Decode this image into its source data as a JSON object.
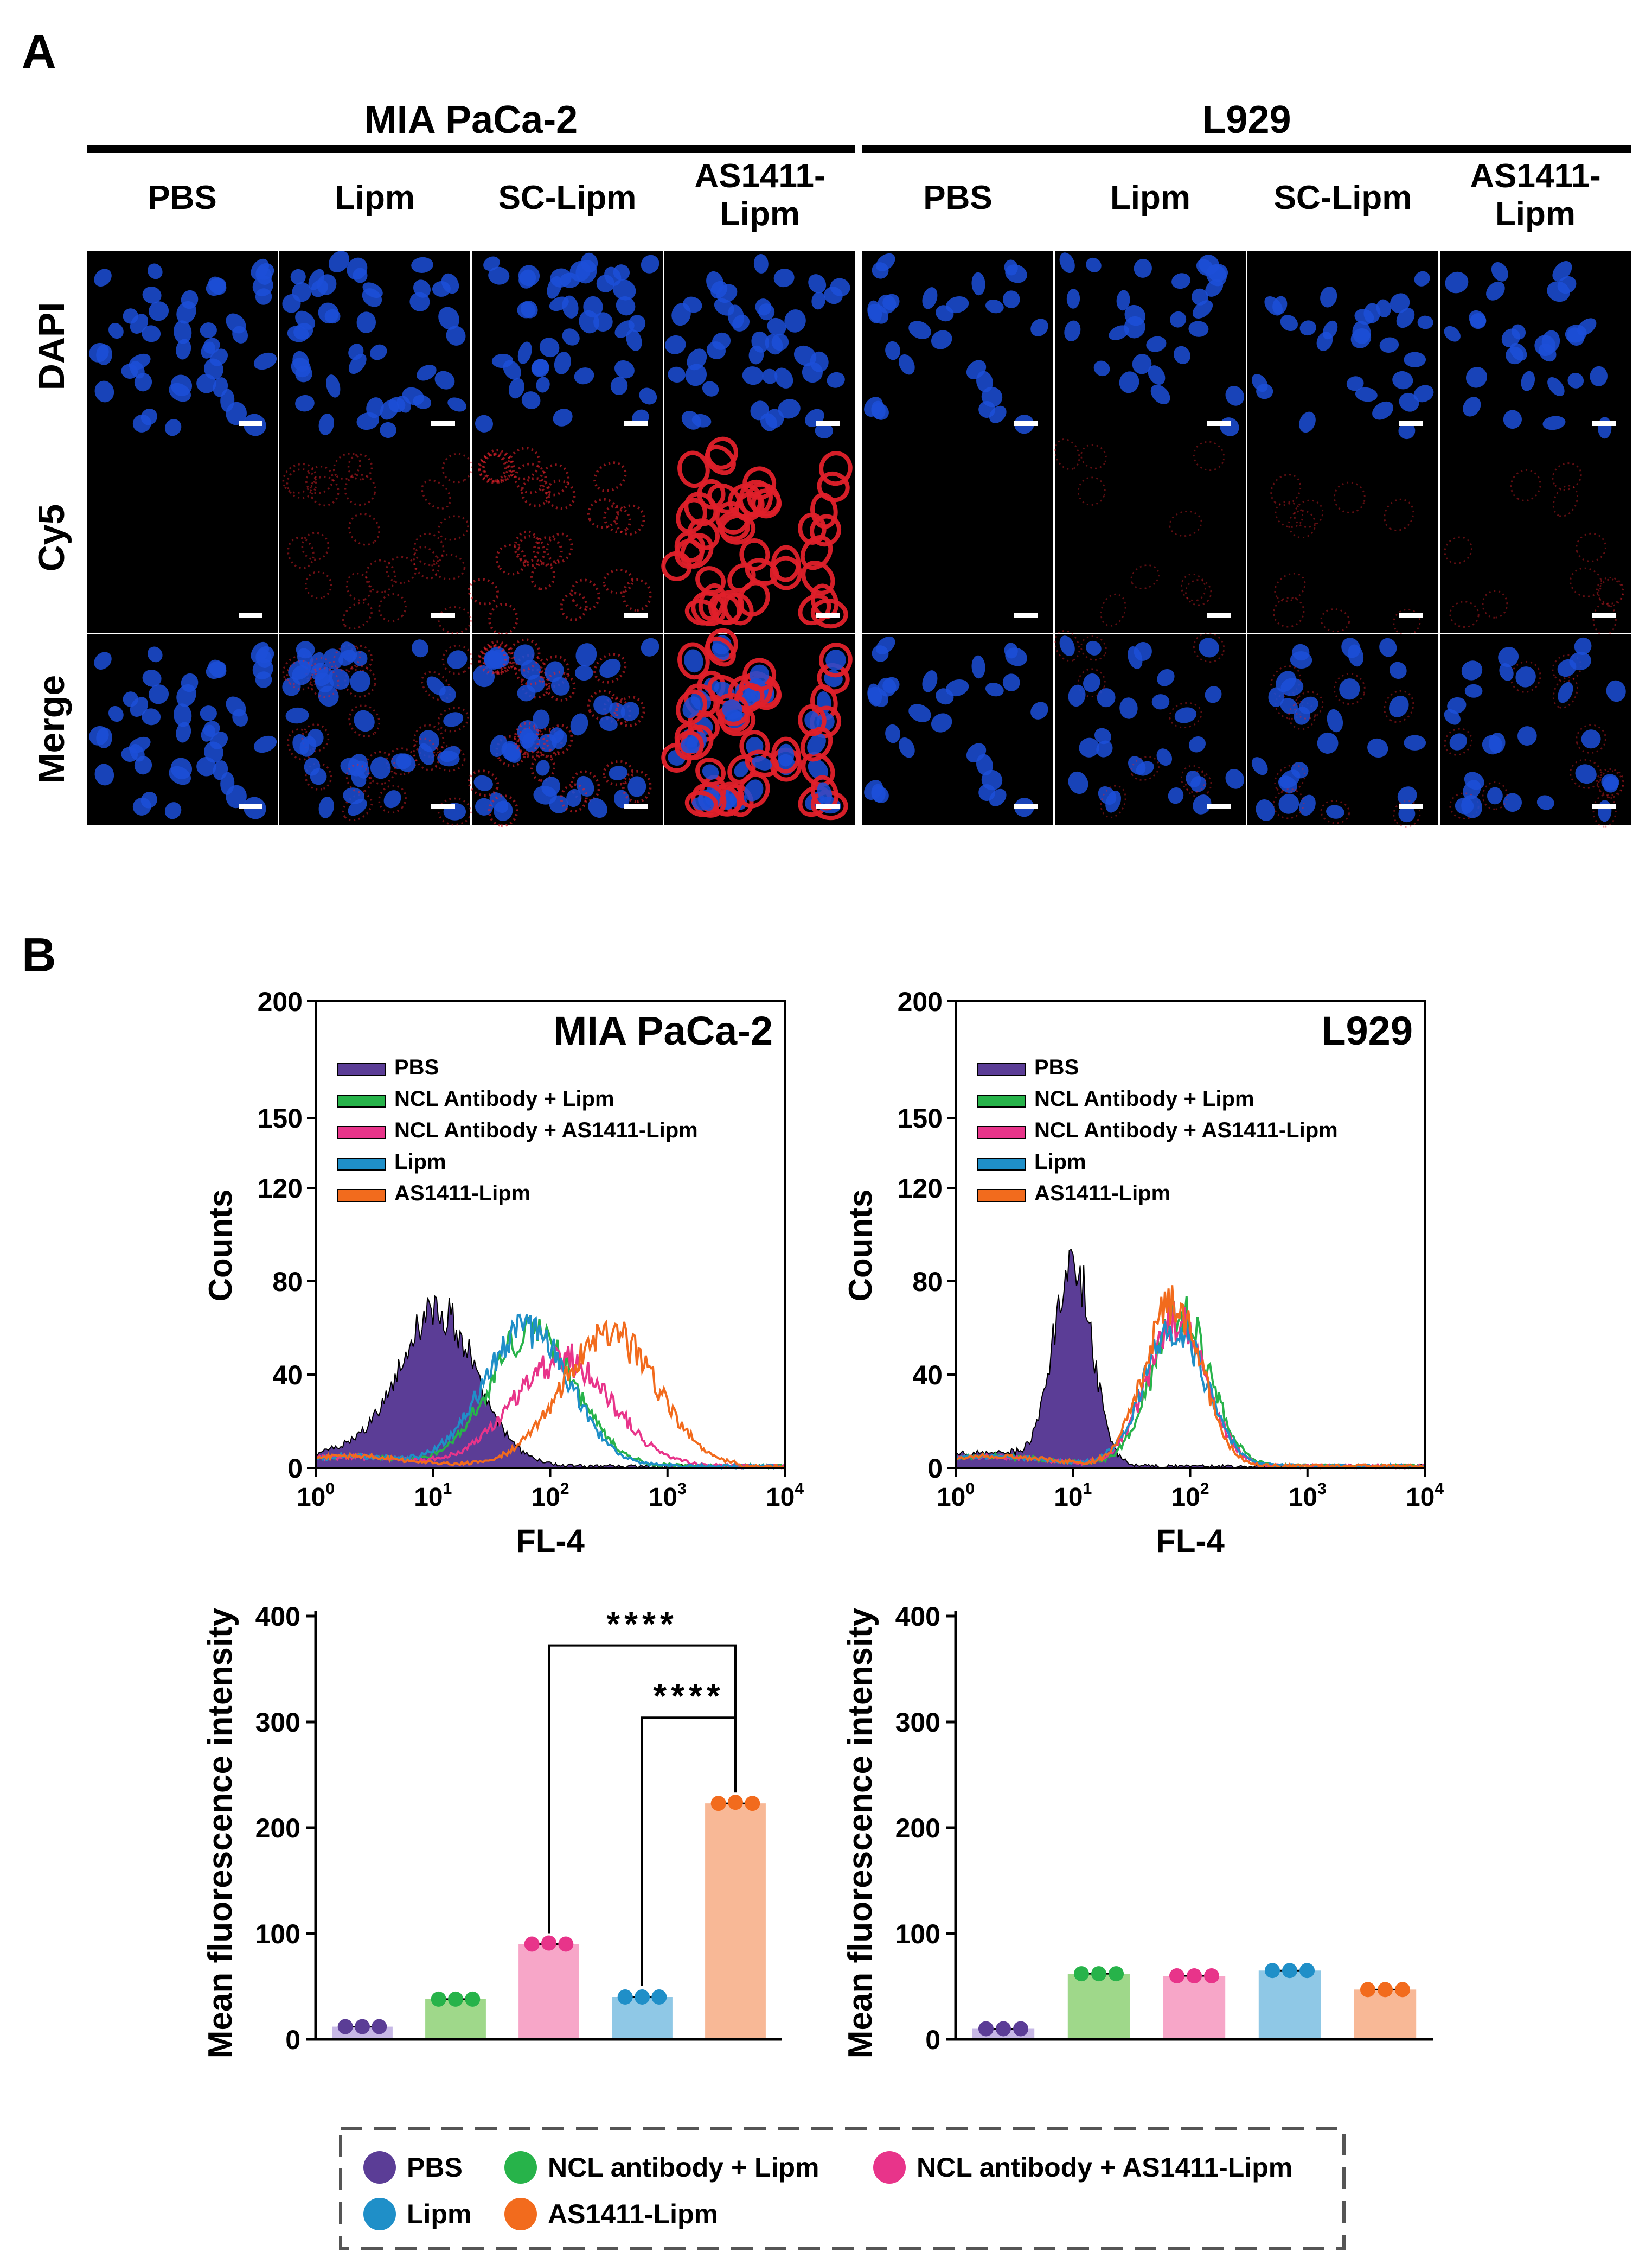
{
  "panel_a": {
    "label": "A",
    "cell_lines": [
      {
        "name": "MIA PaCa-2",
        "groups": [
          "PBS",
          "Lipm",
          "SC-Lipm",
          "AS1411-\nLipm"
        ]
      },
      {
        "name": "L929",
        "groups": [
          "PBS",
          "Lipm",
          "SC-Lipm",
          "AS1411-\nLipm"
        ]
      }
    ],
    "rows": [
      "DAPI",
      "Cy5",
      "Merge"
    ],
    "cy5_intensity": [
      [
        0,
        0.25,
        0.45,
        1.0
      ],
      [
        0,
        0.12,
        0.15,
        0.15
      ]
    ]
  },
  "panel_b": {
    "label": "B",
    "legend": [
      {
        "label": "PBS",
        "color": "#5b3d96"
      },
      {
        "label": "NCL antibody + Lipm",
        "color": "#27b34a"
      },
      {
        "label": "NCL antibody + AS1411-Lipm",
        "color": "#e8348a"
      },
      {
        "label": "Lipm",
        "color": "#1f8fc8"
      },
      {
        "label": "AS1411-Lipm",
        "color": "#f26b1d"
      }
    ]
  },
  "chart_data": [
    {
      "type": "area",
      "title": "MIA PaCa-2",
      "xlabel": "FL-4",
      "ylabel": "Counts",
      "x_scale": "log",
      "xlim_exponents": [
        0,
        4
      ],
      "x_tick_base": "10",
      "x_tick_exponents": [
        "0",
        "1",
        "2",
        "3",
        "4"
      ],
      "ylim": [
        0,
        200
      ],
      "y_ticks": [
        0,
        40,
        80,
        120,
        150,
        200
      ],
      "legend": [
        "PBS",
        "NCL Antibody + Lipm",
        "NCL Antibody + AS1411-Lipm",
        "Lipm",
        "AS1411-Lipm"
      ],
      "series": [
        {
          "name": "PBS",
          "color": "#5b3d96",
          "filled": true,
          "peak_log10": 1.05,
          "peak_count": 65,
          "width": 0.33
        },
        {
          "name": "NCL Antibody + Lipm",
          "color": "#27b34a",
          "filled": false,
          "peak_log10": 1.85,
          "peak_count": 58,
          "width": 0.36
        },
        {
          "name": "NCL Antibody + AS1411-Lipm",
          "color": "#e8348a",
          "filled": false,
          "peak_log10": 2.1,
          "peak_count": 46,
          "width": 0.42
        },
        {
          "name": "Lipm",
          "color": "#1f8fc8",
          "filled": false,
          "peak_log10": 1.8,
          "peak_count": 60,
          "width": 0.36
        },
        {
          "name": "AS1411-Lipm",
          "color": "#f26b1d",
          "filled": false,
          "peak_log10": 2.5,
          "peak_count": 58,
          "width": 0.4
        }
      ]
    },
    {
      "type": "area",
      "title": "L929",
      "xlabel": "FL-4",
      "ylabel": "Counts",
      "x_scale": "log",
      "xlim_exponents": [
        0,
        4
      ],
      "x_tick_base": "10",
      "x_tick_exponents": [
        "0",
        "1",
        "2",
        "3",
        "4"
      ],
      "ylim": [
        0,
        200
      ],
      "y_ticks": [
        0,
        40,
        80,
        120,
        150,
        200
      ],
      "legend": [
        "PBS",
        "NCL Antibody + Lipm",
        "NCL Antibody + AS1411-Lipm",
        "Lipm",
        "AS1411-Lipm"
      ],
      "series": [
        {
          "name": "PBS",
          "color": "#5b3d96",
          "filled": true,
          "peak_log10": 1.0,
          "peak_count": 88,
          "width": 0.16
        },
        {
          "name": "NCL Antibody + Lipm",
          "color": "#27b34a",
          "filled": false,
          "peak_log10": 1.92,
          "peak_count": 66,
          "width": 0.25
        },
        {
          "name": "NCL Antibody + AS1411-Lipm",
          "color": "#e8348a",
          "filled": false,
          "peak_log10": 1.88,
          "peak_count": 62,
          "width": 0.25
        },
        {
          "name": "Lipm",
          "color": "#1f8fc8",
          "filled": false,
          "peak_log10": 1.87,
          "peak_count": 60,
          "width": 0.26
        },
        {
          "name": "AS1411-Lipm",
          "color": "#f26b1d",
          "filled": false,
          "peak_log10": 1.85,
          "peak_count": 72,
          "width": 0.24
        }
      ]
    },
    {
      "type": "bar",
      "title": "MIA PaCa-2",
      "ylabel": "Mean fluorescence intensity",
      "ylim": [
        0,
        400
      ],
      "y_ticks": [
        0,
        100,
        200,
        300,
        400
      ],
      "categories": [
        "PBS",
        "NCL antibody + Lipm",
        "NCL antibody + AS1411-Lipm",
        "Lipm",
        "AS1411-Lipm"
      ],
      "values": [
        12,
        38,
        90,
        40,
        223
      ],
      "points": [
        [
          12,
          12,
          12
        ],
        [
          38,
          38,
          38
        ],
        [
          90,
          91,
          90
        ],
        [
          40,
          40,
          40
        ],
        [
          223,
          224,
          223
        ]
      ],
      "bar_colors": [
        "#c7b8e6",
        "#9fd88a",
        "#f7a6c8",
        "#8fc8e6",
        "#f8b896"
      ],
      "point_colors": [
        "#5b3d96",
        "#27b34a",
        "#e8348a",
        "#1f8fc8",
        "#f26b1d"
      ],
      "significance": [
        {
          "from": 2,
          "to": 4,
          "label": "****"
        },
        {
          "from": 3,
          "to": 4,
          "label": "****"
        }
      ]
    },
    {
      "type": "bar",
      "title": "L929",
      "ylabel": "Mean fluorescence intensity",
      "ylim": [
        0,
        400
      ],
      "y_ticks": [
        0,
        100,
        200,
        300,
        400
      ],
      "categories": [
        "PBS",
        "NCL antibody + Lipm",
        "NCL antibody + AS1411-Lipm",
        "Lipm",
        "AS1411-Lipm"
      ],
      "values": [
        10,
        62,
        60,
        65,
        47
      ],
      "points": [
        [
          10,
          10,
          10
        ],
        [
          62,
          62,
          62
        ],
        [
          60,
          60,
          60
        ],
        [
          65,
          65,
          65
        ],
        [
          47,
          47,
          47
        ]
      ],
      "bar_colors": [
        "#c7b8e6",
        "#9fd88a",
        "#f7a6c8",
        "#8fc8e6",
        "#f8b896"
      ],
      "point_colors": [
        "#5b3d96",
        "#27b34a",
        "#e8348a",
        "#1f8fc8",
        "#f26b1d"
      ],
      "significance": []
    }
  ]
}
